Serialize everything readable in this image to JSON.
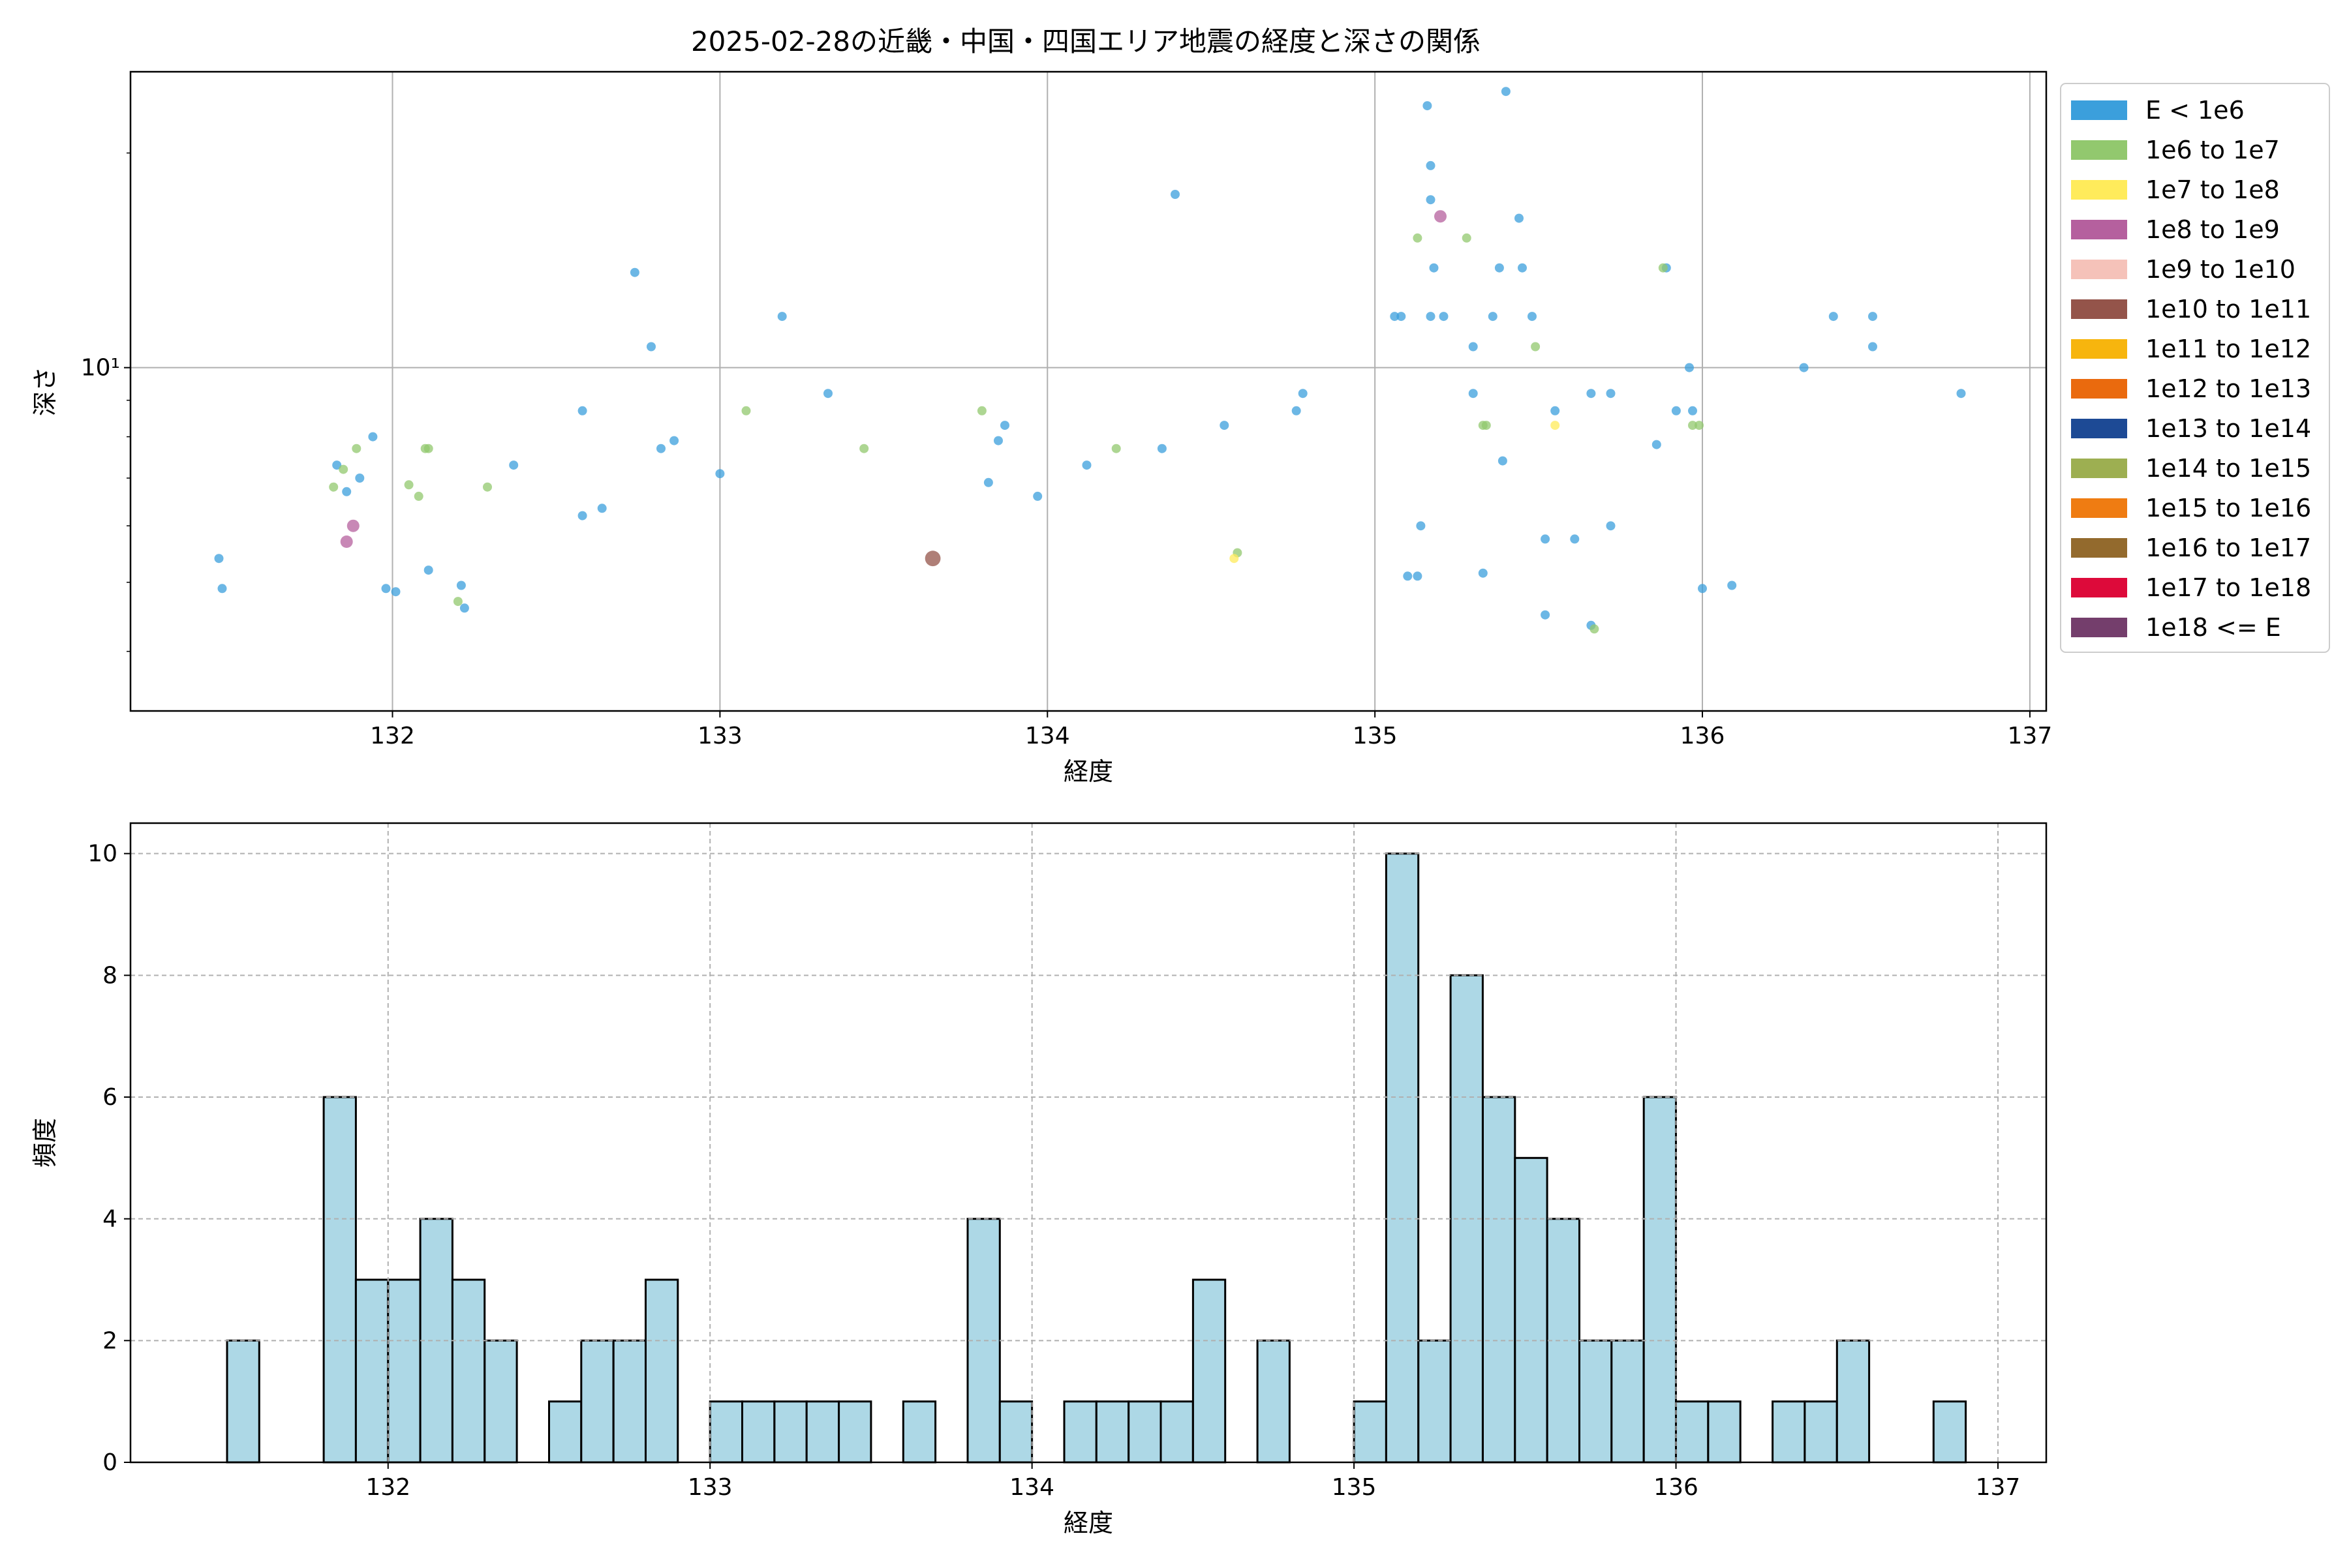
{
  "title": "2025-02-28の近畿・中国・四国エリア地震の経度と深さの関係",
  "chart_data": [
    {
      "type": "scatter",
      "title": "2025-02-28の近畿・中国・四国エリア地震の経度と深さの関係",
      "xlabel": "経度",
      "ylabel": "深さ",
      "xlim": [
        131.2,
        137.05
      ],
      "ylim": [
        3.3,
        26
      ],
      "yscale": "log",
      "xticks": [
        132,
        133,
        134,
        135,
        136,
        137
      ],
      "xtick_labels": [
        "132",
        "133",
        "134",
        "135",
        "136",
        "137"
      ],
      "yticks": [
        10
      ],
      "ytick_labels": [
        "10¹"
      ],
      "grid": true,
      "legend_position": "outside-right",
      "legend": [
        {
          "label": "E < 1e6",
          "color": "#3b9fdc"
        },
        {
          "label": "1e6 to 1e7",
          "color": "#92c86e"
        },
        {
          "label": "1e7 to 1e8",
          "color": "#ffeb5b"
        },
        {
          "label": "1e8 to 1e9",
          "color": "#b5609e"
        },
        {
          "label": "1e9 to 1e10",
          "color": "#f5c2b9"
        },
        {
          "label": "1e10 to 1e11",
          "color": "#94544a"
        },
        {
          "label": "1e11 to 1e12",
          "color": "#f7b50e"
        },
        {
          "label": "1e12 to 1e13",
          "color": "#ea6a0e"
        },
        {
          "label": "1e13 to 1e14",
          "color": "#1d4a95"
        },
        {
          "label": "1e14 to 1e15",
          "color": "#9daf51"
        },
        {
          "label": "1e15 to 1e16",
          "color": "#ef7c12"
        },
        {
          "label": "1e16 to 1e17",
          "color": "#936a2d"
        },
        {
          "label": "1e17 to 1e18",
          "color": "#dd0a3a"
        },
        {
          "label": "1e18 <= E",
          "color": "#743e6c"
        }
      ],
      "series": [
        {
          "name": "E < 1e6",
          "color": "#3b9fdc",
          "size": 1,
          "points": [
            [
              131.47,
              5.4
            ],
            [
              131.48,
              4.9
            ],
            [
              131.83,
              7.3
            ],
            [
              131.86,
              6.7
            ],
            [
              131.9,
              7.0
            ],
            [
              131.94,
              8.0
            ],
            [
              131.98,
              4.9
            ],
            [
              132.01,
              4.85
            ],
            [
              132.11,
              5.2
            ],
            [
              132.21,
              4.95
            ],
            [
              132.22,
              4.6
            ],
            [
              132.37,
              7.3
            ],
            [
              132.58,
              8.7
            ],
            [
              132.58,
              6.2
            ],
            [
              132.64,
              6.35
            ],
            [
              132.74,
              13.6
            ],
            [
              132.79,
              10.7
            ],
            [
              132.82,
              7.7
            ],
            [
              132.86,
              7.9
            ],
            [
              133.0,
              7.1
            ],
            [
              133.19,
              11.8
            ],
            [
              133.33,
              9.2
            ],
            [
              133.82,
              6.9
            ],
            [
              133.85,
              7.9
            ],
            [
              133.87,
              8.3
            ],
            [
              133.97,
              6.6
            ],
            [
              134.12,
              7.3
            ],
            [
              134.35,
              7.7
            ],
            [
              134.39,
              17.5
            ],
            [
              134.54,
              8.3
            ],
            [
              134.76,
              8.7
            ],
            [
              134.78,
              9.2
            ],
            [
              135.06,
              11.8
            ],
            [
              135.08,
              11.8
            ],
            [
              135.1,
              5.1
            ],
            [
              135.13,
              5.1
            ],
            [
              135.14,
              6.0
            ],
            [
              135.16,
              23.3
            ],
            [
              135.17,
              19.2
            ],
            [
              135.17,
              17.2
            ],
            [
              135.17,
              11.8
            ],
            [
              135.18,
              13.8
            ],
            [
              135.21,
              11.8
            ],
            [
              135.3,
              10.7
            ],
            [
              135.3,
              9.2
            ],
            [
              135.33,
              5.15
            ],
            [
              135.36,
              11.8
            ],
            [
              135.38,
              13.8
            ],
            [
              135.39,
              7.4
            ],
            [
              135.4,
              24.4
            ],
            [
              135.44,
              16.2
            ],
            [
              135.45,
              13.8
            ],
            [
              135.48,
              11.8
            ],
            [
              135.52,
              5.75
            ],
            [
              135.52,
              4.5
            ],
            [
              135.55,
              8.7
            ],
            [
              135.61,
              5.75
            ],
            [
              135.66,
              4.35
            ],
            [
              135.66,
              9.2
            ],
            [
              135.72,
              9.2
            ],
            [
              135.72,
              6.0
            ],
            [
              135.86,
              7.8
            ],
            [
              135.89,
              13.8
            ],
            [
              135.92,
              8.7
            ],
            [
              135.96,
              10.0
            ],
            [
              135.97,
              8.7
            ],
            [
              136.0,
              4.9
            ],
            [
              136.09,
              4.95
            ],
            [
              136.31,
              10.0
            ],
            [
              136.4,
              11.8
            ],
            [
              136.52,
              11.8
            ],
            [
              136.52,
              10.7
            ],
            [
              136.79,
              9.2
            ]
          ]
        },
        {
          "name": "1e6 to 1e7",
          "color": "#92c86e",
          "size": 1,
          "points": [
            [
              131.82,
              6.8
            ],
            [
              131.85,
              7.2
            ],
            [
              131.89,
              7.7
            ],
            [
              132.05,
              6.85
            ],
            [
              132.08,
              6.6
            ],
            [
              132.1,
              7.7
            ],
            [
              132.11,
              7.7
            ],
            [
              132.2,
              4.7
            ],
            [
              132.29,
              6.8
            ],
            [
              133.08,
              8.7
            ],
            [
              133.44,
              7.7
            ],
            [
              133.8,
              8.7
            ],
            [
              134.21,
              7.7
            ],
            [
              134.58,
              5.5
            ],
            [
              135.13,
              15.2
            ],
            [
              135.28,
              15.2
            ],
            [
              135.33,
              8.3
            ],
            [
              135.34,
              8.3
            ],
            [
              135.49,
              10.7
            ],
            [
              135.67,
              4.3
            ],
            [
              135.88,
              13.8
            ],
            [
              135.97,
              8.3
            ],
            [
              135.99,
              8.3
            ]
          ]
        },
        {
          "name": "1e7 to 1e8",
          "color": "#ffeb5b",
          "size": 1,
          "points": [
            [
              134.57,
              5.4
            ],
            [
              135.55,
              8.3
            ]
          ]
        },
        {
          "name": "1e8 to 1e9",
          "color": "#b5609e",
          "size": 1.35,
          "points": [
            [
              131.88,
              6.0
            ],
            [
              131.86,
              5.7
            ],
            [
              135.2,
              16.3
            ]
          ]
        },
        {
          "name": "1e10 to 1e11",
          "color": "#94544a",
          "size": 1.7,
          "points": [
            [
              133.65,
              5.4
            ]
          ]
        }
      ]
    },
    {
      "type": "bar",
      "subtype": "histogram",
      "xlabel": "経度",
      "ylabel": "頻度",
      "xlim": [
        131.2,
        137.15
      ],
      "ylim": [
        0,
        10.5
      ],
      "xticks": [
        132,
        133,
        134,
        135,
        136,
        137
      ],
      "xtick_labels": [
        "132",
        "133",
        "134",
        "135",
        "136",
        "137"
      ],
      "yticks": [
        0,
        2,
        4,
        6,
        8,
        10
      ],
      "ytick_labels": [
        "0",
        "2",
        "4",
        "6",
        "8",
        "10"
      ],
      "grid": true,
      "bar_color": "#add8e6",
      "bins_start": 131.5,
      "bin_width": 0.1,
      "values": [
        2,
        0,
        0,
        6,
        3,
        3,
        4,
        3,
        2,
        0,
        1,
        2,
        2,
        3,
        0,
        1,
        1,
        1,
        1,
        1,
        0,
        1,
        0,
        4,
        1,
        0,
        1,
        1,
        1,
        1,
        3,
        0,
        2,
        0,
        0,
        1,
        10,
        2,
        8,
        6,
        5,
        4,
        2,
        2,
        6,
        1,
        1,
        0,
        1,
        1,
        2,
        0,
        0,
        1
      ]
    }
  ]
}
